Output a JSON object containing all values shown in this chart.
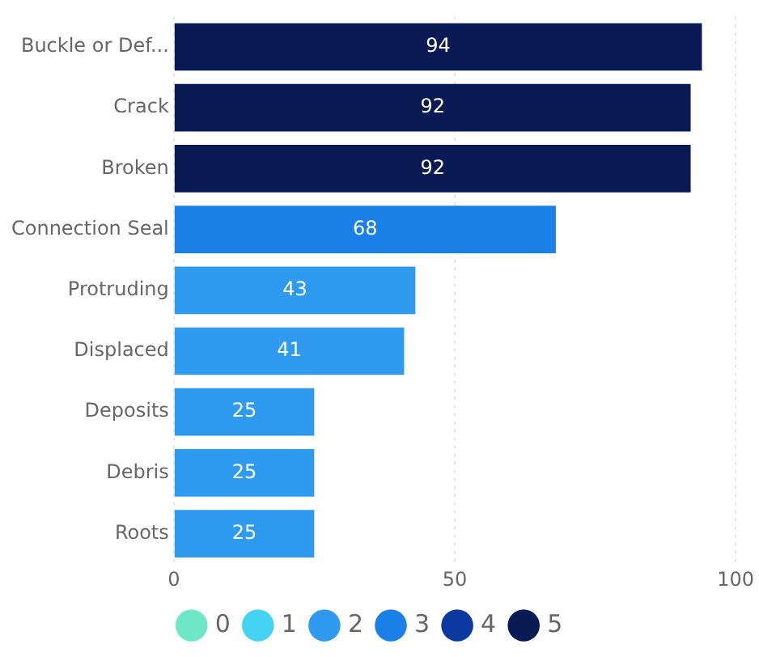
{
  "chart_data": {
    "type": "bar",
    "orientation": "horizontal",
    "stacked": true,
    "categories": [
      "Buckle or Def...",
      "Crack",
      "Broken",
      "Connection Seal",
      "Protruding",
      "Displaced",
      "Deposits",
      "Debris",
      "Roots"
    ],
    "series": [
      {
        "name": "0",
        "color": "#6ee6c8",
        "values": [
          null,
          null,
          null,
          null,
          null,
          null,
          null,
          null,
          null
        ]
      },
      {
        "name": "1",
        "color": "#44d2f5",
        "values": [
          null,
          null,
          null,
          null,
          null,
          null,
          null,
          null,
          null
        ]
      },
      {
        "name": "2",
        "color": "#2e9bf0",
        "values": [
          null,
          null,
          null,
          null,
          43,
          41,
          25,
          25,
          25
        ]
      },
      {
        "name": "3",
        "color": "#1a7fe6",
        "values": [
          null,
          null,
          null,
          68,
          null,
          null,
          null,
          null,
          null
        ]
      },
      {
        "name": "4",
        "color": "#0a3aa0",
        "values": [
          null,
          null,
          null,
          null,
          null,
          null,
          null,
          null,
          null
        ]
      },
      {
        "name": "5",
        "color": "#0a1a55",
        "values": [
          94,
          92,
          92,
          null,
          null,
          null,
          null,
          null,
          null
        ]
      }
    ],
    "xlim": [
      0,
      100
    ],
    "xticks": [
      0,
      50,
      100
    ],
    "grid": "x",
    "legend": "bottom",
    "data_labels": true
  }
}
